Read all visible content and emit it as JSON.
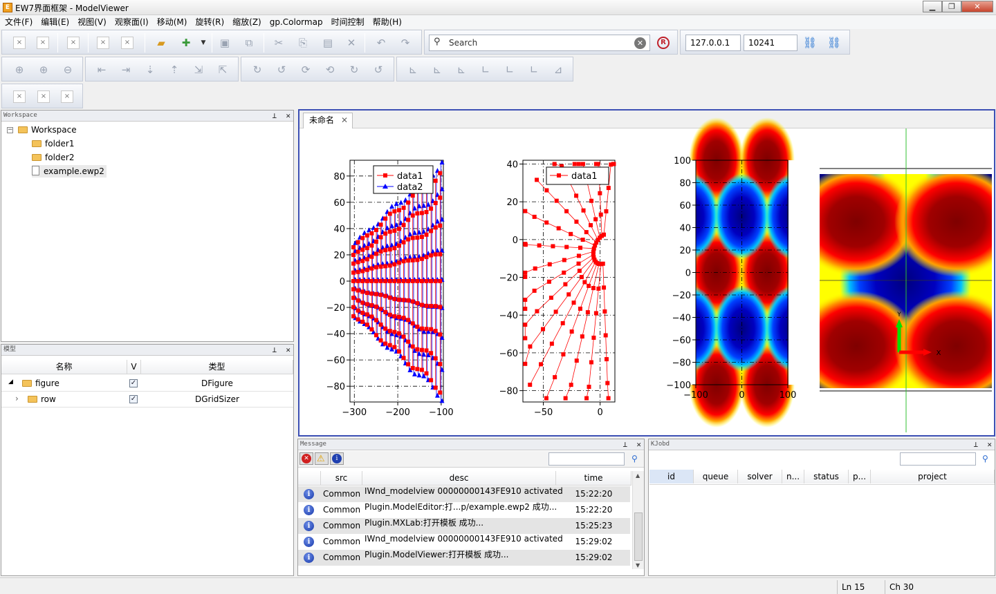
{
  "window": {
    "title": "EW7界面框架 - ModelViewer",
    "icon": "app-icon",
    "controls": [
      "minimize",
      "maximize",
      "close"
    ]
  },
  "menu": [
    "文件(F)",
    "编辑(E)",
    "视图(V)",
    "观察面(I)",
    "移动(M)",
    "旋转(R)",
    "缩放(Z)",
    "gp.Colormap",
    "时间控制",
    "帮助(H)"
  ],
  "toolbar": {
    "search_placeholder": "Search",
    "host": "127.0.0.1",
    "port": "10241"
  },
  "workspace": {
    "title": "Workspace",
    "root": "Workspace",
    "items": [
      "folder1",
      "folder2",
      "example.ewp2"
    ]
  },
  "model": {
    "title": "模型",
    "columns": [
      "名称",
      "V",
      "类型"
    ],
    "rows": [
      {
        "name": "figure",
        "checked": true,
        "type": "DFigure"
      },
      {
        "name": "row",
        "checked": true,
        "type": "DGridSizer"
      }
    ]
  },
  "document": {
    "tab": "未命名"
  },
  "message": {
    "title": "Message",
    "columns": [
      "src",
      "desc",
      "time"
    ],
    "rows": [
      {
        "src": "Common",
        "desc": "IWnd_modelview 00000000143FE910 activated",
        "time": "15:22:20"
      },
      {
        "src": "Common",
        "desc": "Plugin.ModelEditor:打...p/example.ewp2 成功...",
        "time": "15:22:20"
      },
      {
        "src": "Common",
        "desc": "Plugin.MXLab:打开模板  成功...",
        "time": "15:25:23"
      },
      {
        "src": "Common",
        "desc": "IWnd_modelview 00000000143FE910 activated",
        "time": "15:29:02"
      },
      {
        "src": "Common",
        "desc": "Plugin.ModelViewer:打开模板  成功...",
        "time": "15:29:02"
      }
    ]
  },
  "kjobd": {
    "title": "KJobd",
    "columns": [
      "id",
      "queue",
      "solver",
      "n...",
      "status",
      "p...",
      "project"
    ]
  },
  "status": {
    "line": "Ln 15",
    "col": "Ch 30"
  },
  "chart_data": [
    {
      "type": "line",
      "series": [
        {
          "name": "data1",
          "color": "#ff0000",
          "marker": "square"
        },
        {
          "name": "data2",
          "color": "#0000ff",
          "marker": "triangle"
        }
      ],
      "xlim": [
        -310,
        -95
      ],
      "ylim": [
        -92,
        92
      ],
      "xticks": [
        "−300",
        "−200",
        "−100"
      ],
      "yticks": [
        "80",
        "60",
        "40",
        "20",
        "0",
        "−20",
        "−40",
        "−60",
        "−80"
      ],
      "legend": "top-right",
      "grid": true
    },
    {
      "type": "line",
      "series": [
        {
          "name": "data1",
          "color": "#ff0000",
          "marker": "square"
        }
      ],
      "xlim": [
        -68,
        13
      ],
      "ylim": [
        -86,
        42
      ],
      "xticks": [
        "−50",
        "0"
      ],
      "yticks": [
        "40",
        "20",
        "0",
        "−20",
        "−40",
        "−60",
        "−80"
      ],
      "legend": "top-right",
      "grid": true
    },
    {
      "type": "heatmap",
      "xlim": [
        -100,
        100
      ],
      "ylim": [
        -100,
        100
      ],
      "xticks": [
        "−100",
        "0",
        "100"
      ],
      "yticks": [
        "100",
        "80",
        "60",
        "40",
        "20",
        "0",
        "−20",
        "−40",
        "−60",
        "−80",
        "−100"
      ],
      "colormap": "jet",
      "grid": true
    },
    {
      "type": "heatmap",
      "colormap": "jet",
      "axes_triad": {
        "x": "X",
        "y": "Y"
      }
    }
  ]
}
